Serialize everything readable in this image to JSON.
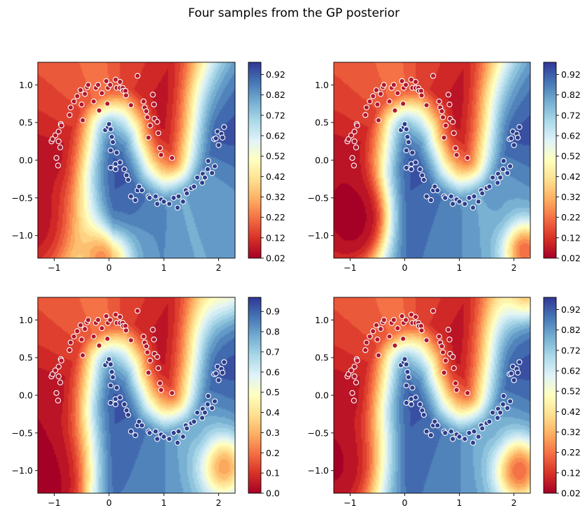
{
  "figure": {
    "title": "Four samples from the GP posterior"
  },
  "chart_data": [
    {
      "type": "heatmap",
      "title": "",
      "xlabel": "",
      "ylabel": "",
      "xlim": [
        -1.3,
        2.3
      ],
      "ylim": [
        -1.3,
        1.3
      ],
      "x_ticks": [
        -1,
        0,
        1,
        2
      ],
      "y_ticks": [
        -1.0,
        -0.5,
        0.0,
        0.5,
        1.0
      ],
      "colormap": "RdYlBu",
      "colorbar": {
        "range": [
          0.02,
          0.98
        ],
        "ticks": [
          "0.02",
          "0.12",
          "0.22",
          "0.32",
          "0.42",
          "0.52",
          "0.62",
          "0.72",
          "0.82",
          "0.92"
        ]
      }
    },
    {
      "type": "heatmap",
      "title": "",
      "xlabel": "",
      "ylabel": "",
      "xlim": [
        -1.3,
        2.3
      ],
      "ylim": [
        -1.3,
        1.3
      ],
      "x_ticks": [
        -1,
        0,
        1,
        2
      ],
      "y_ticks": [
        -1.0,
        -0.5,
        0.0,
        0.5,
        1.0
      ],
      "colormap": "RdYlBu",
      "colorbar": {
        "range": [
          0.02,
          0.98
        ],
        "ticks": [
          "0.02",
          "0.12",
          "0.22",
          "0.32",
          "0.42",
          "0.52",
          "0.62",
          "0.72",
          "0.82",
          "0.92"
        ]
      }
    },
    {
      "type": "heatmap",
      "title": "",
      "xlabel": "",
      "ylabel": "",
      "xlim": [
        -1.3,
        2.3
      ],
      "ylim": [
        -1.3,
        1.3
      ],
      "x_ticks": [
        -1,
        0,
        1,
        2
      ],
      "y_ticks": [
        -1.0,
        -0.5,
        0.0,
        0.5,
        1.0
      ],
      "colormap": "RdYlBu",
      "colorbar": {
        "range": [
          0.0,
          0.97
        ],
        "ticks": [
          "0.0",
          "0.1",
          "0.2",
          "0.3",
          "0.4",
          "0.5",
          "0.6",
          "0.7",
          "0.8",
          "0.9"
        ]
      }
    },
    {
      "type": "heatmap",
      "title": "",
      "xlabel": "",
      "ylabel": "",
      "xlim": [
        -1.3,
        2.3
      ],
      "ylim": [
        -1.3,
        1.3
      ],
      "x_ticks": [
        -1,
        0,
        1,
        2
      ],
      "y_ticks": [
        -1.0,
        -0.5,
        0.0,
        0.5,
        1.0
      ],
      "colormap": "RdYlBu",
      "colorbar": {
        "range": [
          0.02,
          0.98
        ],
        "ticks": [
          "0.02",
          "0.12",
          "0.22",
          "0.32",
          "0.42",
          "0.52",
          "0.62",
          "0.72",
          "0.82",
          "0.92"
        ]
      }
    }
  ],
  "shared_points": {
    "class0": [
      [
        -1.05,
        0.25
      ],
      [
        -1.03,
        0.28
      ],
      [
        -0.98,
        0.33
      ],
      [
        -0.92,
        0.38
      ],
      [
        -0.88,
        0.48
      ],
      [
        -0.87,
        0.46
      ],
      [
        -0.92,
        0.25
      ],
      [
        -0.89,
        0.17
      ],
      [
        -0.96,
        0.03
      ],
      [
        -0.93,
        -0.07
      ],
      [
        -0.72,
        0.6
      ],
      [
        -0.7,
        0.7
      ],
      [
        -0.64,
        0.78
      ],
      [
        -0.58,
        0.85
      ],
      [
        -0.52,
        0.93
      ],
      [
        -0.5,
        0.74
      ],
      [
        -0.48,
        0.53
      ],
      [
        -0.44,
        0.88
      ],
      [
        -0.4,
        0.97
      ],
      [
        -0.38,
        1.0
      ],
      [
        -0.28,
        0.78
      ],
      [
        -0.24,
        0.96
      ],
      [
        -0.2,
        1.0
      ],
      [
        -0.18,
        0.66
      ],
      [
        -0.13,
        0.89
      ],
      [
        -0.05,
        1.05
      ],
      [
        -0.03,
        0.75
      ],
      [
        -0.02,
        0.96
      ],
      [
        0.02,
        1.0
      ],
      [
        0.12,
        1.07
      ],
      [
        0.14,
        0.96
      ],
      [
        0.2,
        0.96
      ],
      [
        0.2,
        1.04
      ],
      [
        0.25,
        0.96
      ],
      [
        0.26,
        0.92
      ],
      [
        0.3,
        0.92
      ],
      [
        0.31,
        0.86
      ],
      [
        0.4,
        0.73
      ],
      [
        0.52,
        1.12
      ],
      [
        0.63,
        0.78
      ],
      [
        0.65,
        0.7
      ],
      [
        0.68,
        0.65
      ],
      [
        0.7,
        0.57
      ],
      [
        0.72,
        0.3
      ],
      [
        0.75,
        0.46
      ],
      [
        0.8,
        0.87
      ],
      [
        0.82,
        0.74
      ],
      [
        0.83,
        0.55
      ],
      [
        0.88,
        0.51
      ],
      [
        0.9,
        0.36
      ],
      [
        0.93,
        0.16
      ],
      [
        0.95,
        0.07
      ],
      [
        1.15,
        0.03
      ]
    ],
    "class1": [
      [
        -0.07,
        0.4
      ],
      [
        -0.02,
        0.44
      ],
      [
        0.0,
        0.48
      ],
      [
        0.03,
        0.41
      ],
      [
        0.05,
        0.31
      ],
      [
        0.07,
        0.24
      ],
      [
        0.03,
        0.13
      ],
      [
        0.03,
        -0.1
      ],
      [
        0.12,
        -0.05
      ],
      [
        0.14,
        0.1
      ],
      [
        0.12,
        -0.12
      ],
      [
        0.2,
        -0.03
      ],
      [
        0.28,
        -0.12
      ],
      [
        0.32,
        -0.2
      ],
      [
        0.35,
        -0.26
      ],
      [
        0.4,
        -0.48
      ],
      [
        0.48,
        -0.53
      ],
      [
        0.52,
        -0.4
      ],
      [
        0.55,
        -0.35
      ],
      [
        0.6,
        -0.4
      ],
      [
        0.72,
        -0.48
      ],
      [
        0.74,
        -0.5
      ],
      [
        0.85,
        -0.48
      ],
      [
        0.88,
        -0.58
      ],
      [
        0.95,
        -0.52
      ],
      [
        1.0,
        -0.55
      ],
      [
        1.1,
        -0.58
      ],
      [
        1.18,
        -0.5
      ],
      [
        1.25,
        -0.63
      ],
      [
        1.27,
        -0.48
      ],
      [
        1.35,
        -0.55
      ],
      [
        1.4,
        -0.4
      ],
      [
        1.42,
        -0.44
      ],
      [
        1.5,
        -0.37
      ],
      [
        1.55,
        -0.35
      ],
      [
        1.61,
        -0.23
      ],
      [
        1.7,
        -0.3
      ],
      [
        1.71,
        -0.18
      ],
      [
        1.75,
        -0.23
      ],
      [
        1.8,
        -0.12
      ],
      [
        1.81,
        -0.01
      ],
      [
        1.88,
        -0.17
      ],
      [
        1.92,
        0.28
      ],
      [
        1.95,
        0.29
      ],
      [
        1.98,
        0.38
      ],
      [
        2.0,
        0.2
      ],
      [
        2.05,
        0.35
      ],
      [
        2.1,
        0.44
      ],
      [
        2.07,
        0.3
      ],
      [
        1.93,
        -0.08
      ]
    ]
  }
}
